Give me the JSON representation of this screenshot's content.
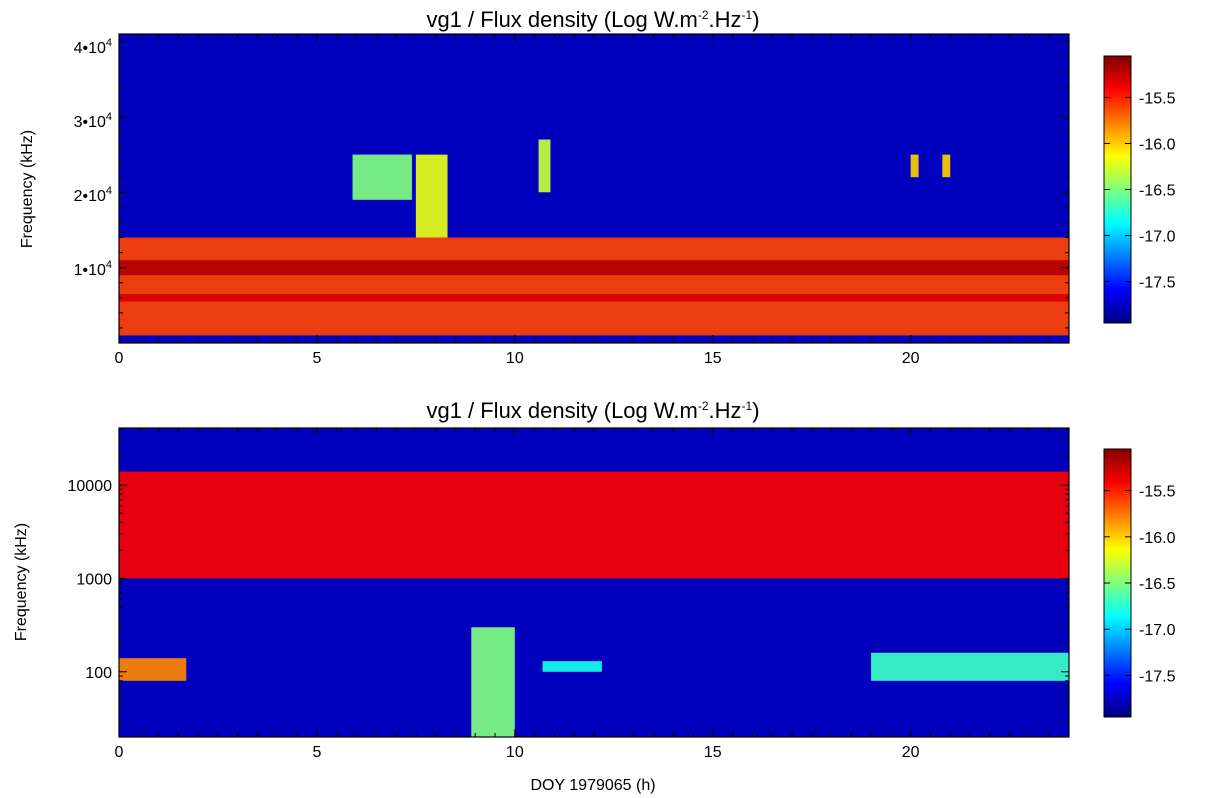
{
  "chart_data": [
    {
      "type": "heatmap",
      "title": "vg1 / Flux density (Log W.m",
      "title_sup1": "-2",
      "title_mid": ".Hz",
      "title_sup2": "-1",
      "title_end": ")",
      "xlabel": "",
      "ylabel": "Frequency (kHz)",
      "xlim": [
        0,
        24
      ],
      "ylim": [
        0,
        41000
      ],
      "yscale": "linear",
      "x_ticks": [
        0,
        5,
        10,
        15,
        20
      ],
      "x_tick_labels": [
        "0",
        "5",
        "10",
        "15",
        "20"
      ],
      "y_ticks": [
        10000,
        20000,
        30000,
        40000
      ],
      "y_tick_labels": [
        {
          "base": "1•10",
          "exp": "4"
        },
        {
          "base": "2•10",
          "exp": "4"
        },
        {
          "base": "3•10",
          "exp": "4"
        },
        {
          "base": "4•10",
          "exp": "4"
        }
      ],
      "colorbar": {
        "range": [
          -17.95,
          -15.05
        ],
        "ticks": [
          -15.5,
          -16.0,
          -16.5,
          -17.0,
          -17.5
        ],
        "tick_labels": [
          "-15.5",
          "-16.0",
          "-16.5",
          "-17.0",
          "-17.5"
        ],
        "colormap": "jet"
      },
      "features": [
        {
          "name": "main emission band",
          "x": [
            0,
            24
          ],
          "y": [
            1000,
            14000
          ],
          "level": -15.6
        },
        {
          "name": "intense band",
          "x": [
            0,
            24
          ],
          "y": [
            9000,
            11000
          ],
          "level": -15.2
        },
        {
          "name": "intense band",
          "x": [
            0,
            24
          ],
          "y": [
            5500,
            6500
          ],
          "level": -15.3
        },
        {
          "name": "burst",
          "x": [
            5.9,
            7.4
          ],
          "y": [
            19000,
            25000
          ],
          "level": -16.5
        },
        {
          "name": "burst",
          "x": [
            7.5,
            8.3
          ],
          "y": [
            14000,
            25000
          ],
          "level": -16.2
        },
        {
          "name": "burst",
          "x": [
            10.6,
            10.9
          ],
          "y": [
            20000,
            27000
          ],
          "level": -16.3
        },
        {
          "name": "burst",
          "x": [
            20.0,
            20.2
          ],
          "y": [
            22000,
            25000
          ],
          "level": -16.0
        },
        {
          "name": "burst",
          "x": [
            20.8,
            21.0
          ],
          "y": [
            22000,
            25000
          ],
          "level": -16.0
        }
      ]
    },
    {
      "type": "heatmap",
      "title": "vg1 / Flux density (Log W.m",
      "title_sup1": "-2",
      "title_mid": ".Hz",
      "title_sup2": "-1",
      "title_end": ")",
      "xlabel": "DOY 1979065 (h)",
      "ylabel": "Frequency (kHz)",
      "xlim": [
        0,
        24
      ],
      "ylim": [
        20,
        41000
      ],
      "yscale": "log",
      "x_ticks": [
        0,
        5,
        10,
        15,
        20
      ],
      "x_tick_labels": [
        "0",
        "5",
        "10",
        "15",
        "20"
      ],
      "y_ticks": [
        100,
        1000,
        10000
      ],
      "y_tick_labels": [
        "100",
        "1000",
        "10000"
      ],
      "colorbar": {
        "range": [
          -17.95,
          -15.05
        ],
        "ticks": [
          -15.5,
          -16.0,
          -16.5,
          -17.0,
          -17.5
        ],
        "tick_labels": [
          "-15.5",
          "-16.0",
          "-16.5",
          "-17.0",
          "-17.5"
        ],
        "colormap": "jet"
      },
      "features": [
        {
          "name": "high-frequency emission",
          "x": [
            0,
            24
          ],
          "y": [
            1000,
            14000
          ],
          "level": -15.4
        },
        {
          "name": "low-frequency patch",
          "x": [
            0,
            1.7
          ],
          "y": [
            80,
            140
          ],
          "level": -15.8
        },
        {
          "name": "low-frequency patch",
          "x": [
            10.7,
            12.2
          ],
          "y": [
            100,
            130
          ],
          "level": -16.8
        },
        {
          "name": "low-frequency patch",
          "x": [
            19.0,
            24
          ],
          "y": [
            80,
            160
          ],
          "level": -16.7
        },
        {
          "name": "low-frequency burst",
          "x": [
            8.9,
            10.0
          ],
          "y": [
            20,
            300
          ],
          "level": -16.5
        }
      ]
    }
  ]
}
